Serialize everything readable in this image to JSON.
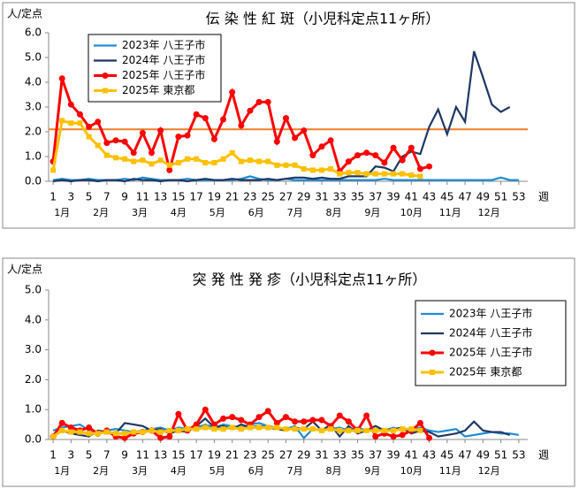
{
  "chart_data": [
    {
      "type": "line",
      "title": "伝 染 性 紅 斑（小児科定点11ヶ所）",
      "y_label": "人/定点",
      "x_label": "週",
      "months": [
        "1月",
        "2月",
        "3月",
        "4月",
        "5月",
        "6月",
        "7月",
        "8月",
        "9月",
        "10月",
        "11月",
        "12月"
      ],
      "x": [
        1,
        2,
        3,
        4,
        5,
        6,
        7,
        8,
        9,
        10,
        11,
        12,
        13,
        14,
        15,
        16,
        17,
        18,
        19,
        20,
        21,
        22,
        23,
        24,
        25,
        26,
        27,
        28,
        29,
        30,
        31,
        32,
        33,
        34,
        35,
        36,
        37,
        38,
        39,
        40,
        41,
        42,
        43,
        44,
        45,
        46,
        47,
        48,
        49,
        50,
        51,
        52,
        53
      ],
      "xlim": [
        0.5,
        54
      ],
      "xticks": [
        1,
        3,
        5,
        7,
        9,
        11,
        13,
        15,
        17,
        19,
        21,
        23,
        25,
        27,
        29,
        31,
        33,
        35,
        37,
        39,
        41,
        43,
        45,
        47,
        49,
        51,
        53
      ],
      "ylim": [
        0,
        6
      ],
      "yticks": [
        {
          "value": 0,
          "label": "0.0"
        },
        {
          "value": 1,
          "label": "1.0"
        },
        {
          "value": 2,
          "label": "2.0"
        },
        {
          "value": 3,
          "label": "3.0"
        },
        {
          "value": 4,
          "label": "4.0"
        },
        {
          "value": 5,
          "label": "5.0"
        },
        {
          "value": 6,
          "label": "6.0"
        }
      ],
      "grid": false,
      "legend": "upper left",
      "hline": {
        "value": 2.1,
        "color": "#f07d2a"
      },
      "series": [
        {
          "name": "2023年 八王子市",
          "color": "#1f8dd6",
          "marker": null,
          "values": [
            0.05,
            0.1,
            0.05,
            0.05,
            0.1,
            0.05,
            0.05,
            0.05,
            0.1,
            0.05,
            0.15,
            0.1,
            0.05,
            0.05,
            0.05,
            0.1,
            0.05,
            0.05,
            0.05,
            0.05,
            0.05,
            0.1,
            0.2,
            0.1,
            0.05,
            0.05,
            0.1,
            0.05,
            0.05,
            0.05,
            0.05,
            0.05,
            0.05,
            0.05,
            0.05,
            0.05,
            0.05,
            0.1,
            0.05,
            0.05,
            0.05,
            0.05,
            0.05,
            0.05,
            0.05,
            0.05,
            0.05,
            0.05,
            0.05,
            0.05,
            0.15,
            0.05,
            0.05
          ]
        },
        {
          "name": "2024年 八王子市",
          "color": "#1f3864",
          "marker": null,
          "values": [
            0,
            0.05,
            0,
            0.05,
            0.05,
            0,
            0.05,
            0.05,
            0,
            0.1,
            0.05,
            0.05,
            0,
            0.05,
            0.05,
            0,
            0.05,
            0.1,
            0.05,
            0.05,
            0.1,
            0.05,
            0.05,
            0.05,
            0.1,
            0.05,
            0.1,
            0.15,
            0.15,
            0.1,
            0.15,
            0.1,
            0.1,
            0.2,
            0.2,
            0.2,
            0.6,
            0.55,
            0.4,
            1.0,
            1.2,
            1.1,
            2.2,
            2.9,
            1.9,
            3.0,
            2.4,
            5.25,
            4.2,
            3.1,
            2.8,
            3.0,
            null
          ]
        },
        {
          "name": "2025年 八王子市",
          "color": "#ff0000",
          "marker": "circle",
          "values": [
            0.8,
            4.15,
            3.1,
            2.7,
            2.2,
            2.4,
            1.55,
            1.65,
            1.6,
            1.15,
            1.95,
            1.15,
            2.05,
            0.45,
            1.8,
            1.85,
            2.7,
            2.55,
            1.7,
            2.5,
            3.6,
            2.25,
            2.85,
            3.2,
            3.2,
            1.6,
            2.55,
            1.75,
            2.05,
            1.05,
            1.4,
            1.65,
            0.4,
            0.8,
            1.05,
            1.15,
            1.05,
            0.75,
            1.35,
            0.85,
            1.35,
            0.5,
            0.6,
            null,
            null,
            null,
            null,
            null,
            null,
            null,
            null,
            null,
            null
          ]
        },
        {
          "name": "2025年 東京都",
          "color": "#ffc000",
          "marker": "square",
          "values": [
            0.45,
            2.45,
            2.35,
            2.35,
            1.8,
            1.45,
            1.05,
            0.95,
            0.9,
            0.8,
            0.85,
            0.7,
            0.85,
            0.65,
            0.75,
            0.9,
            0.9,
            0.75,
            0.75,
            0.9,
            1.15,
            0.8,
            0.85,
            0.8,
            0.8,
            0.65,
            0.65,
            0.65,
            0.5,
            0.45,
            0.45,
            0.5,
            0.3,
            0.35,
            0.35,
            0.3,
            0.3,
            0.3,
            0.3,
            0.3,
            0.25,
            0.2,
            null,
            null,
            null,
            null,
            null,
            null,
            null,
            null,
            null,
            null,
            null
          ]
        }
      ]
    },
    {
      "type": "line",
      "title": "突 発 性 発 疹（小児科定点11ヶ所）",
      "y_label": "人/定点",
      "x_label": "週",
      "months": [
        "1月",
        "2月",
        "3月",
        "4月",
        "5月",
        "6月",
        "7月",
        "8月",
        "9月",
        "10月",
        "11月",
        "12月"
      ],
      "x": [
        1,
        2,
        3,
        4,
        5,
        6,
        7,
        8,
        9,
        10,
        11,
        12,
        13,
        14,
        15,
        16,
        17,
        18,
        19,
        20,
        21,
        22,
        23,
        24,
        25,
        26,
        27,
        28,
        29,
        30,
        31,
        32,
        33,
        34,
        35,
        36,
        37,
        38,
        39,
        40,
        41,
        42,
        43,
        44,
        45,
        46,
        47,
        48,
        49,
        50,
        51,
        52,
        53
      ],
      "xlim": [
        0.5,
        54
      ],
      "xticks": [
        1,
        3,
        5,
        7,
        9,
        11,
        13,
        15,
        17,
        19,
        21,
        23,
        25,
        27,
        29,
        31,
        33,
        35,
        37,
        39,
        41,
        43,
        45,
        47,
        49,
        51,
        53
      ],
      "ylim": [
        0,
        5
      ],
      "yticks": [
        {
          "value": 0,
          "label": "0.0"
        },
        {
          "value": 1,
          "label": "1.0"
        },
        {
          "value": 2,
          "label": "2.0"
        },
        {
          "value": 3,
          "label": "3.0"
        },
        {
          "value": 4,
          "label": "4.0"
        },
        {
          "value": 5,
          "label": "5.0"
        }
      ],
      "grid": false,
      "legend": "right",
      "series": [
        {
          "name": "2023年 八王子市",
          "color": "#1f8dd6",
          "marker": null,
          "values": [
            0.3,
            0.4,
            0.45,
            0.5,
            0.3,
            0.2,
            0.3,
            0.35,
            0.3,
            0.25,
            0.3,
            0.35,
            0.4,
            0.3,
            0.4,
            0.35,
            0.4,
            0.5,
            0.4,
            0.5,
            0.45,
            0.4,
            0.5,
            0.55,
            0.45,
            0.4,
            0.35,
            0.45,
            0.05,
            0.35,
            0.3,
            0.35,
            0.4,
            0.3,
            0.4,
            0.3,
            0.35,
            0.3,
            0.4,
            0.3,
            0.35,
            0.4,
            0.3,
            0.25,
            0.3,
            0.35,
            0.1,
            0.15,
            0.2,
            0.25,
            0.2,
            0.2,
            0.15
          ]
        },
        {
          "name": "2024年 八王子市",
          "color": "#1f3864",
          "marker": null,
          "values": [
            0.1,
            0.3,
            0.2,
            0.15,
            0.1,
            0.3,
            0.25,
            0.2,
            0.55,
            0.5,
            0.45,
            0.3,
            0.35,
            0.2,
            0.3,
            0.25,
            0.45,
            0.7,
            0.4,
            0.45,
            0.35,
            0.5,
            0.4,
            0.45,
            0.4,
            0.35,
            0.3,
            0.4,
            0.35,
            0.6,
            0.3,
            0.5,
            0.1,
            0.45,
            0.2,
            0.3,
            0.45,
            0.3,
            0.35,
            0.4,
            0.2,
            0.3,
            0.25,
            0.1,
            0.15,
            0.2,
            0.3,
            0.6,
            0.3,
            0.25,
            0.25,
            0.15,
            null
          ]
        },
        {
          "name": "2025年 八王子市",
          "color": "#ff0000",
          "marker": "circle",
          "values": [
            0.1,
            0.55,
            0.4,
            0.3,
            0.4,
            0.2,
            0.3,
            0.1,
            0.05,
            0.2,
            0.25,
            0.3,
            0.05,
            0.1,
            0.85,
            0.3,
            0.5,
            1.0,
            0.5,
            0.7,
            0.75,
            0.65,
            0.5,
            0.75,
            0.95,
            0.55,
            0.75,
            0.6,
            0.6,
            0.65,
            0.65,
            0.45,
            0.8,
            0.6,
            0.3,
            0.8,
            0.1,
            0.2,
            0.1,
            0.15,
            0.3,
            0.55,
            0.05,
            null,
            null,
            null,
            null,
            null,
            null,
            null,
            null,
            null,
            null
          ]
        },
        {
          "name": "2025年 東京都",
          "color": "#ffc000",
          "marker": "square",
          "values": [
            0.1,
            0.3,
            0.25,
            0.25,
            0.2,
            0.2,
            0.25,
            0.2,
            0.2,
            0.25,
            0.25,
            0.3,
            0.25,
            0.3,
            0.3,
            0.35,
            0.35,
            0.4,
            0.35,
            0.35,
            0.4,
            0.35,
            0.4,
            0.4,
            0.4,
            0.4,
            0.35,
            0.35,
            0.35,
            0.35,
            0.3,
            0.35,
            0.3,
            0.3,
            0.3,
            0.3,
            0.3,
            0.3,
            0.3,
            0.35,
            0.35,
            0.3,
            null,
            null,
            null,
            null,
            null,
            null,
            null,
            null,
            null,
            null,
            null
          ]
        }
      ]
    }
  ]
}
